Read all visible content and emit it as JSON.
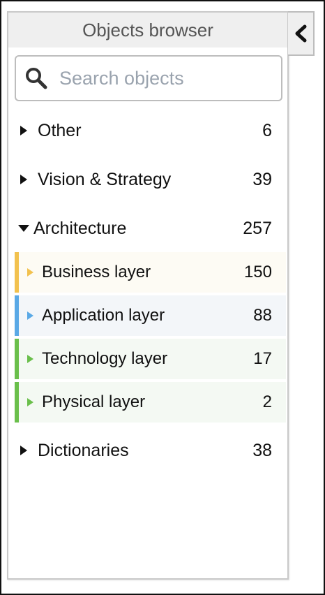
{
  "panel": {
    "title": "Objects browser"
  },
  "search": {
    "placeholder": "Search objects",
    "value": ""
  },
  "tree": {
    "other": {
      "label": "Other",
      "count": "6"
    },
    "vision": {
      "label": "Vision & Strategy",
      "count": "39"
    },
    "architecture": {
      "label": "Architecture",
      "count": "257",
      "children": [
        {
          "label": "Business layer",
          "count": "150",
          "accent": "#f2c14e",
          "bg": "#fdfbf4",
          "caret": "#f2c14e"
        },
        {
          "label": "Application layer",
          "count": "88",
          "accent": "#5aa9e6",
          "bg": "#f3f6f9",
          "caret": "#5aa9e6"
        },
        {
          "label": "Technology layer",
          "count": "17",
          "accent": "#6abf4b",
          "bg": "#f4f9f3",
          "caret": "#6abf4b"
        },
        {
          "label": "Physical layer",
          "count": "2",
          "accent": "#6abf4b",
          "bg": "#f4f9f3",
          "caret": "#6abf4b"
        }
      ]
    },
    "dictionaries": {
      "label": "Dictionaries",
      "count": "38"
    }
  },
  "icons": {
    "search": "search-icon",
    "collapse": "chevron-left-icon"
  }
}
